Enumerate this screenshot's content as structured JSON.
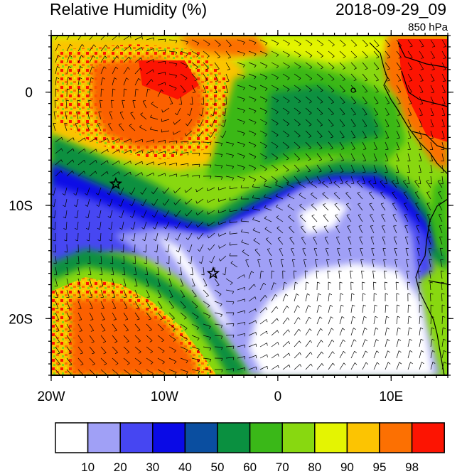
{
  "title": "Relative Humidity (%)",
  "timestamp": "2018-09-29_09",
  "level": "850 hPa",
  "axes": {
    "lon_ticks": [
      {
        "value": -20,
        "label": "20W"
      },
      {
        "value": -10,
        "label": "10W"
      },
      {
        "value": 0,
        "label": "0"
      },
      {
        "value": 10,
        "label": "10E"
      }
    ],
    "lat_ticks": [
      {
        "value": 0,
        "label": "0"
      },
      {
        "value": -10,
        "label": "10S"
      },
      {
        "value": -20,
        "label": "20S"
      }
    ],
    "lon_range": [
      -20,
      15
    ],
    "lat_range": [
      -25,
      5
    ]
  },
  "markers": [
    {
      "name": "star-marker-north",
      "lon": -14.3,
      "lat": -8.1
    },
    {
      "name": "star-marker-south",
      "lon": -5.7,
      "lat": -16.0
    }
  ],
  "colorbar": {
    "labels": [
      "10",
      "20",
      "30",
      "40",
      "50",
      "60",
      "70",
      "80",
      "90",
      "95",
      "98"
    ],
    "colors": [
      "#ffffff",
      "#a0a0f6",
      "#4646f2",
      "#0a0ae6",
      "#0a4ea0",
      "#0a9040",
      "#3ab818",
      "#88d810",
      "#e4f402",
      "#fcc402",
      "#fc7002",
      "#fc1402"
    ]
  }
}
